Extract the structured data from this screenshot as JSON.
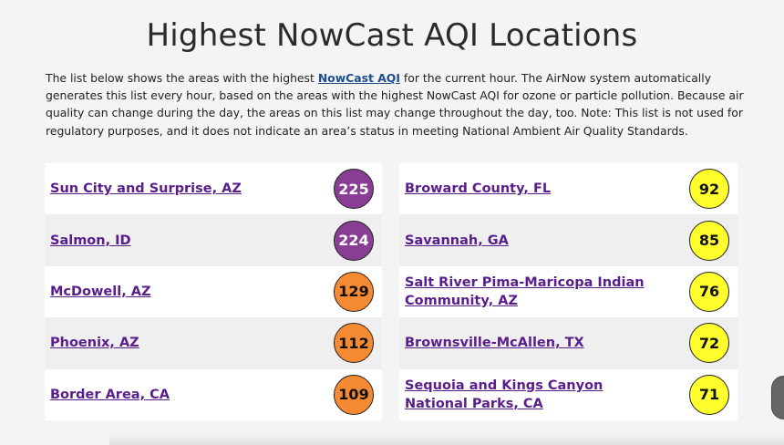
{
  "page": {
    "title": "Highest NowCast AQI Locations",
    "intro_before": "The list below shows the areas with the highest ",
    "intro_link": "NowCast AQI",
    "intro_after": " for the current hour. The AirNow system automatically generates this list every hour, based on the areas with the highest NowCast AQI for ozone or particle pollution. Because air quality can change during the day, the areas on this list may change throughout the day, too. Note: This list is not used for regulatory purposes, and it does not indicate an area’s status in meeting National Ambient Air Quality Standards."
  },
  "colors": {
    "very_unhealthy": "#8a3d94",
    "unhealthy_sensitive": "#f58a33",
    "moderate": "#ffff2e",
    "link": "#5a1e8c"
  },
  "left": [
    {
      "name": "Sun City and Surprise, AZ",
      "aqi": "225"
    },
    {
      "name": "Salmon, ID",
      "aqi": "224"
    },
    {
      "name": "McDowell, AZ",
      "aqi": "129"
    },
    {
      "name": "Phoenix, AZ",
      "aqi": "112"
    },
    {
      "name": "Border Area, CA",
      "aqi": "109"
    }
  ],
  "right": [
    {
      "name": "Broward County, FL",
      "aqi": "92"
    },
    {
      "name": "Savannah, GA",
      "aqi": "85"
    },
    {
      "name": "Salt River Pima-Maricopa Indian Community, AZ",
      "aqi": "76"
    },
    {
      "name": "Brownsville-McAllen, TX",
      "aqi": "72"
    },
    {
      "name": "Sequoia and Kings Canyon National Parks, CA",
      "aqi": "71"
    }
  ]
}
